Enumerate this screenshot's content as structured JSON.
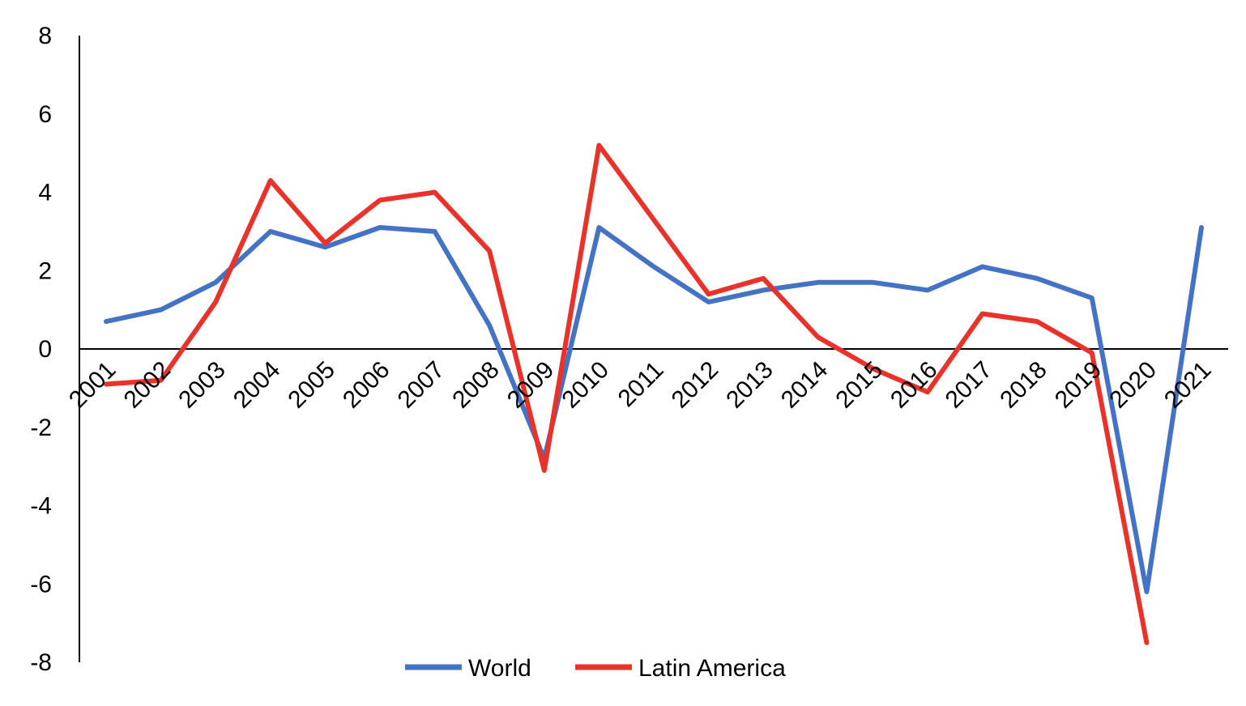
{
  "chart_data": {
    "type": "line",
    "title": "",
    "xlabel": "",
    "ylabel": "",
    "categories": [
      "2001",
      "2002",
      "2003",
      "2004",
      "2005",
      "2006",
      "2007",
      "2008",
      "2009",
      "2010",
      "2011",
      "2012",
      "2013",
      "2014",
      "2015",
      "2016",
      "2017",
      "2018",
      "2019",
      "2020",
      "2021"
    ],
    "ylim": [
      -8,
      8
    ],
    "yticks": [
      "8",
      "6",
      "4",
      "2",
      "0",
      "-2",
      "-4",
      "-6",
      "-8"
    ],
    "ytick_values": [
      8,
      6,
      4,
      2,
      0,
      -2,
      -4,
      -6,
      -8
    ],
    "grid": false,
    "legend_position": "bottom",
    "series": [
      {
        "name": "World",
        "color": "#4472C4",
        "values": [
          0.7,
          1.0,
          1.7,
          3.0,
          2.6,
          3.1,
          3.0,
          0.6,
          -2.8,
          3.1,
          2.1,
          1.2,
          1.5,
          1.7,
          1.7,
          1.5,
          2.1,
          1.8,
          1.3,
          -6.2,
          3.1
        ]
      },
      {
        "name": "Latin America",
        "color": "#E8322A",
        "values": [
          -0.9,
          -0.8,
          1.2,
          4.3,
          2.7,
          3.8,
          4.0,
          2.5,
          -3.1,
          5.2,
          3.3,
          1.4,
          1.8,
          0.3,
          -0.5,
          -1.1,
          0.9,
          0.7,
          -0.1,
          -7.5,
          null
        ]
      }
    ]
  }
}
